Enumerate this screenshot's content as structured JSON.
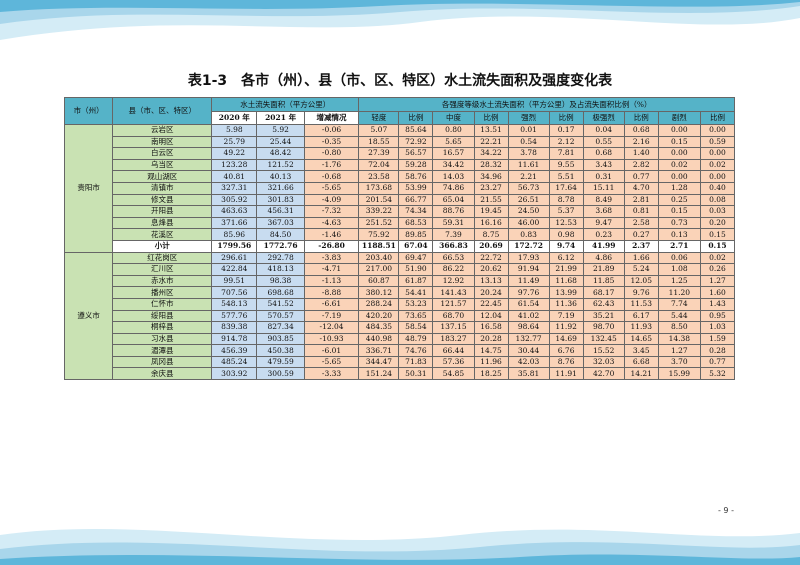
{
  "title": "表1-3　各市（州）、县（市、区、特区）水土流失面积及强度变化表",
  "page_number": "- 9 -",
  "colors": {
    "header_bg": "#55B3C8",
    "name_bg": "#C9E2B3",
    "area_bg": "#C8DCF0",
    "value_bg": "#FAD3B8"
  },
  "headers": {
    "city": "市（州）",
    "county": "县（市、区、特区）",
    "area_group": "水土流失面积（平方公里）",
    "y2020": "2020 年",
    "y2021": "2021 年",
    "change": "增减情况",
    "intensity_group": "各强度等级水土流失面积（平方公里）及占流失面积比例（%）",
    "light": "轻度",
    "ratio": "比例",
    "moderate": "中度",
    "strong": "强烈",
    "very_strong": "极强烈",
    "severe": "剧烈"
  },
  "groups": [
    {
      "city": "贵阳市",
      "rows": [
        [
          "云岩区",
          "5.98",
          "5.92",
          "-0.06",
          "5.07",
          "85.64",
          "0.80",
          "13.51",
          "0.01",
          "0.17",
          "0.04",
          "0.68",
          "0.00",
          "0.00"
        ],
        [
          "南明区",
          "25.79",
          "25.44",
          "-0.35",
          "18.55",
          "72.92",
          "5.65",
          "22.21",
          "0.54",
          "2.12",
          "0.55",
          "2.16",
          "0.15",
          "0.59"
        ],
        [
          "白云区",
          "49.22",
          "48.42",
          "-0.80",
          "27.39",
          "56.57",
          "16.57",
          "34.22",
          "3.78",
          "7.81",
          "0.68",
          "1.40",
          "0.00",
          "0.00"
        ],
        [
          "乌当区",
          "123.28",
          "121.52",
          "-1.76",
          "72.04",
          "59.28",
          "34.42",
          "28.32",
          "11.61",
          "9.55",
          "3.43",
          "2.82",
          "0.02",
          "0.02"
        ],
        [
          "观山湖区",
          "40.81",
          "40.13",
          "-0.68",
          "23.58",
          "58.76",
          "14.03",
          "34.96",
          "2.21",
          "5.51",
          "0.31",
          "0.77",
          "0.00",
          "0.00"
        ],
        [
          "清镇市",
          "327.31",
          "321.66",
          "-5.65",
          "173.68",
          "53.99",
          "74.86",
          "23.27",
          "56.73",
          "17.64",
          "15.11",
          "4.70",
          "1.28",
          "0.40"
        ],
        [
          "修文县",
          "305.92",
          "301.83",
          "-4.09",
          "201.54",
          "66.77",
          "65.04",
          "21.55",
          "26.51",
          "8.78",
          "8.49",
          "2.81",
          "0.25",
          "0.08"
        ],
        [
          "开阳县",
          "463.63",
          "456.31",
          "-7.32",
          "339.22",
          "74.34",
          "88.76",
          "19.45",
          "24.50",
          "5.37",
          "3.68",
          "0.81",
          "0.15",
          "0.03"
        ],
        [
          "息烽县",
          "371.66",
          "367.03",
          "-4.63",
          "251.52",
          "68.53",
          "59.31",
          "16.16",
          "46.00",
          "12.53",
          "9.47",
          "2.58",
          "0.73",
          "0.20"
        ],
        [
          "花溪区",
          "85.96",
          "84.50",
          "-1.46",
          "75.92",
          "89.85",
          "7.39",
          "8.75",
          "0.83",
          "0.98",
          "0.23",
          "0.27",
          "0.13",
          "0.15"
        ]
      ],
      "subtotal": [
        "小计",
        "1799.56",
        "1772.76",
        "-26.80",
        "1188.51",
        "67.04",
        "366.83",
        "20.69",
        "172.72",
        "9.74",
        "41.99",
        "2.37",
        "2.71",
        "0.15"
      ]
    },
    {
      "city": "遵义市",
      "rows": [
        [
          "红花岗区",
          "296.61",
          "292.78",
          "-3.83",
          "203.40",
          "69.47",
          "66.53",
          "22.72",
          "17.93",
          "6.12",
          "4.86",
          "1.66",
          "0.06",
          "0.02"
        ],
        [
          "汇川区",
          "422.84",
          "418.13",
          "-4.71",
          "217.00",
          "51.90",
          "86.22",
          "20.62",
          "91.94",
          "21.99",
          "21.89",
          "5.24",
          "1.08",
          "0.26"
        ],
        [
          "赤水市",
          "99.51",
          "98.38",
          "-1.13",
          "60.87",
          "61.87",
          "12.92",
          "13.13",
          "11.49",
          "11.68",
          "11.85",
          "12.05",
          "1.25",
          "1.27"
        ],
        [
          "播州区",
          "707.56",
          "698.68",
          "-8.88",
          "380.12",
          "54.41",
          "141.43",
          "20.24",
          "97.76",
          "13.99",
          "68.17",
          "9.76",
          "11.20",
          "1.60"
        ],
        [
          "仁怀市",
          "548.13",
          "541.52",
          "-6.61",
          "288.24",
          "53.23",
          "121.57",
          "22.45",
          "61.54",
          "11.36",
          "62.43",
          "11.53",
          "7.74",
          "1.43"
        ],
        [
          "绥阳县",
          "577.76",
          "570.57",
          "-7.19",
          "420.20",
          "73.65",
          "68.70",
          "12.04",
          "41.02",
          "7.19",
          "35.21",
          "6.17",
          "5.44",
          "0.95"
        ],
        [
          "桐梓县",
          "839.38",
          "827.34",
          "-12.04",
          "484.35",
          "58.54",
          "137.15",
          "16.58",
          "98.64",
          "11.92",
          "98.70",
          "11.93",
          "8.50",
          "1.03"
        ],
        [
          "习水县",
          "914.78",
          "903.85",
          "-10.93",
          "440.98",
          "48.79",
          "183.27",
          "20.28",
          "132.77",
          "14.69",
          "132.45",
          "14.65",
          "14.38",
          "1.59"
        ],
        [
          "湄潭县",
          "456.39",
          "450.38",
          "-6.01",
          "336.71",
          "74.76",
          "66.44",
          "14.75",
          "30.44",
          "6.76",
          "15.52",
          "3.45",
          "1.27",
          "0.28"
        ],
        [
          "凤冈县",
          "485.24",
          "479.59",
          "-5.65",
          "344.47",
          "71.83",
          "57.36",
          "11.96",
          "42.03",
          "8.76",
          "32.03",
          "6.68",
          "3.70",
          "0.77"
        ],
        [
          "余庆县",
          "303.92",
          "300.59",
          "-3.33",
          "151.24",
          "50.31",
          "54.85",
          "18.25",
          "35.81",
          "11.91",
          "42.70",
          "14.21",
          "15.99",
          "5.32"
        ]
      ]
    }
  ]
}
